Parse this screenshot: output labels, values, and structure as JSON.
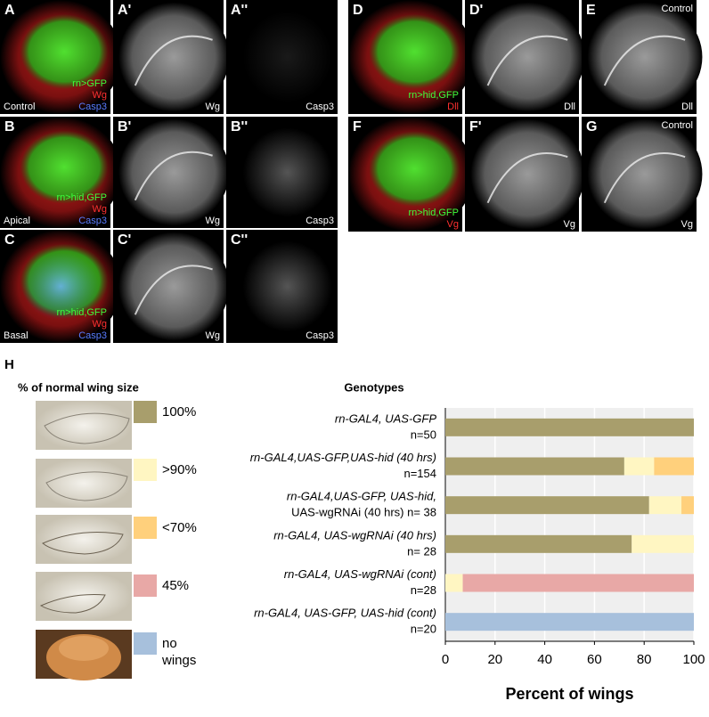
{
  "panels": [
    {
      "letter": "A",
      "labels": [
        {
          "text": "rn>GFP",
          "color": "#3cff3c"
        },
        {
          "text": "Wg",
          "color": "#ff3030"
        },
        {
          "text": "Casp3",
          "color": "#5a7cff"
        }
      ],
      "note": "Control"
    },
    {
      "letter": "A'",
      "labels": [
        {
          "text": "Wg",
          "color": "#ffffff"
        }
      ]
    },
    {
      "letter": "A''",
      "labels": [
        {
          "text": "Casp3",
          "color": "#ffffff"
        }
      ]
    },
    {
      "letter": "B",
      "labels": [
        {
          "text": "rn>hid,GFP",
          "color": "#3cff3c"
        },
        {
          "text": "Wg",
          "color": "#ff3030"
        },
        {
          "text": "Casp3",
          "color": "#5a7cff"
        }
      ],
      "note": "Apical"
    },
    {
      "letter": "B'",
      "labels": [
        {
          "text": "Wg",
          "color": "#ffffff"
        }
      ]
    },
    {
      "letter": "B''",
      "labels": [
        {
          "text": "Casp3",
          "color": "#ffffff"
        }
      ]
    },
    {
      "letter": "C",
      "labels": [
        {
          "text": "rn>hid,GFP",
          "color": "#3cff3c"
        },
        {
          "text": "Wg",
          "color": "#ff3030"
        },
        {
          "text": "Casp3",
          "color": "#5a7cff"
        }
      ],
      "note": "Basal"
    },
    {
      "letter": "C'",
      "labels": [
        {
          "text": "Wg",
          "color": "#ffffff"
        }
      ]
    },
    {
      "letter": "C''",
      "labels": [
        {
          "text": "Casp3",
          "color": "#ffffff"
        }
      ]
    },
    {
      "letter": "D",
      "labels": [
        {
          "text": "rn>hid,GFP",
          "color": "#3cff3c"
        },
        {
          "text": "Dll",
          "color": "#ff3030"
        }
      ]
    },
    {
      "letter": "D'",
      "labels": [
        {
          "text": "Dll",
          "color": "#ffffff"
        }
      ]
    },
    {
      "letter": "E",
      "labels": [
        {
          "text": "Dll",
          "color": "#ffffff"
        }
      ],
      "note": "Control"
    },
    {
      "letter": "F",
      "labels": [
        {
          "text": "rn>hid,GFP",
          "color": "#3cff3c"
        },
        {
          "text": "Vg",
          "color": "#ff3030"
        }
      ]
    },
    {
      "letter": "F'",
      "labels": [
        {
          "text": "Vg",
          "color": "#ffffff"
        }
      ]
    },
    {
      "letter": "G",
      "labels": [
        {
          "text": "Vg",
          "color": "#ffffff"
        }
      ],
      "note": "Control"
    }
  ],
  "panel_h_letter": "H",
  "chart_data": {
    "type": "stacked_barh",
    "legend_title": "% of normal wing size",
    "y_label": "Genotypes",
    "x_label": "Percent of wings",
    "categories": [
      [
        "rn-GAL4, UAS-GFP",
        "n=50"
      ],
      [
        "rn-GAL4,UAS-GFP,UAS-hid (40 hrs)",
        "n=154"
      ],
      [
        "rn-GAL4,UAS-GFP, UAS-hid,",
        "UAS-wgRNAi (40 hrs) n= 38"
      ],
      [
        "rn-GAL4, UAS-wgRNAi (40 hrs)",
        "n= 28"
      ],
      [
        "rn-GAL4, UAS-wgRNAi (cont)",
        "n=28"
      ],
      [
        "rn-GAL4, UAS-GFP, UAS-hid (cont)",
        "n=20"
      ]
    ],
    "series": [
      {
        "name": "100%",
        "color": "#a89e6c",
        "values": [
          100,
          72,
          82,
          75,
          0,
          0
        ]
      },
      {
        "name": ">90%",
        "color": "#fff6c2",
        "values": [
          0,
          12,
          13,
          25,
          7,
          0
        ]
      },
      {
        "name": "<70%",
        "color": "#ffd07c",
        "values": [
          0,
          16,
          5,
          0,
          0,
          0
        ]
      },
      {
        "name": "45%",
        "color": "#e8a8a6",
        "values": [
          0,
          0,
          0,
          0,
          93,
          0
        ]
      },
      {
        "name": "no wings",
        "color": "#a7c0dc",
        "values": [
          0,
          0,
          0,
          0,
          0,
          100
        ]
      }
    ],
    "xlim": [
      0,
      100
    ],
    "xticks": [
      0,
      20,
      40,
      60,
      80,
      100
    ],
    "grid": true
  }
}
